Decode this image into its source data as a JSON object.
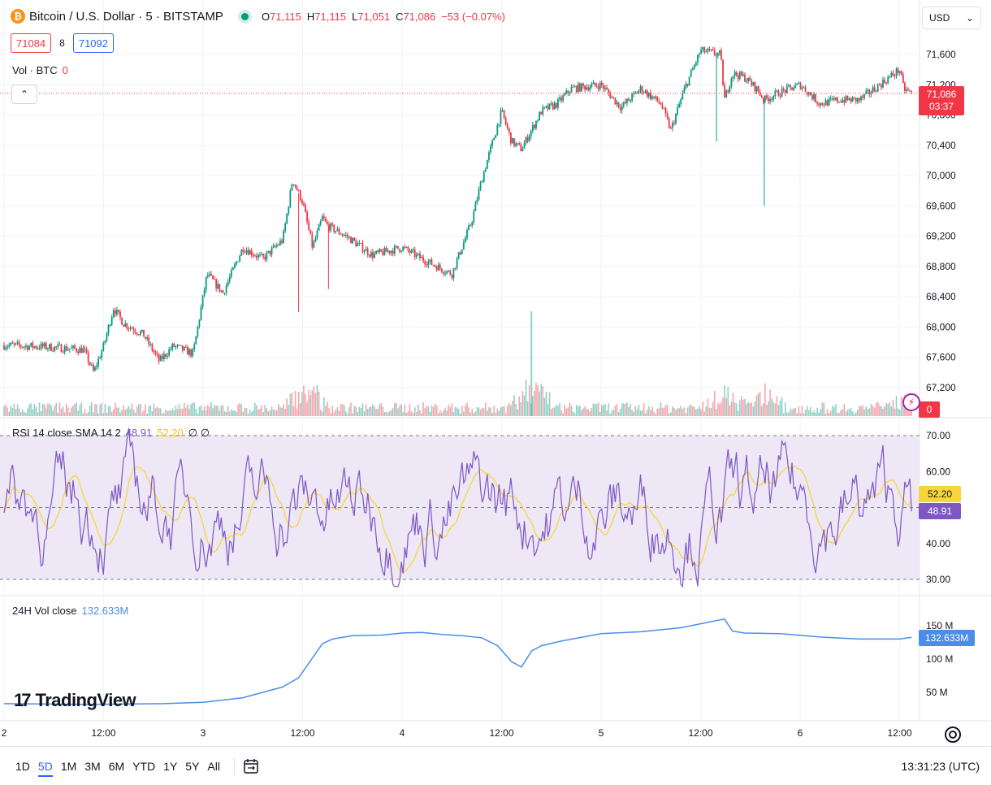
{
  "header": {
    "logo_glyph": "₿",
    "symbol": "Bitcoin / U.S. Dollar · 5 · BITSTAMP",
    "ohlc": {
      "o_label": "O",
      "o": "71,115",
      "h_label": "H",
      "h": "71,115",
      "l_label": "L",
      "l": "71,051",
      "c_label": "C",
      "c": "71,086",
      "change": "−53 (−0.07%)"
    },
    "sell": "71084",
    "spread": "8",
    "buy": "71092",
    "currency": "USD",
    "currency_arrow": "⌄",
    "collapse_glyph": "⌃"
  },
  "volume": {
    "label": "Vol · BTC",
    "value": "0"
  },
  "rsi": {
    "label": "RSI 14 close SMA 14 2",
    "rsi_value": "48.91",
    "sma_value": "52.20",
    "extra": "∅ ∅"
  },
  "vol24": {
    "label": "24H Vol close",
    "value": "132.633M"
  },
  "branding": {
    "mark": "17",
    "name": "TradingView"
  },
  "last_price": {
    "price": "71,086",
    "countdown": "03:37"
  },
  "bolt_glyph": "⚡",
  "ranges": [
    "1D",
    "5D",
    "1M",
    "3M",
    "6M",
    "YTD",
    "1Y",
    "5Y",
    "All"
  ],
  "active_range": "5D",
  "clock": "13:31:23 (UTC)",
  "colors": {
    "up": "#089981",
    "down": "#f23645",
    "rsi": "#7e57c2",
    "sma": "#f7d63a",
    "vol24": "#4c8de8",
    "rsi_band": "#ede7f6"
  },
  "chart_data": [
    {
      "type": "candlestick",
      "title": "Bitcoin / U.S. Dollar · 5 · BITSTAMP",
      "ylim": [
        67000,
        71900
      ],
      "yticks": [
        "71,600",
        "71,200",
        "70,800",
        "70,400",
        "70,000",
        "69,600",
        "69,200",
        "68,800",
        "68,400",
        "68,000",
        "67,600",
        "67,200"
      ],
      "ytick_values": [
        71600,
        71200,
        70800,
        70400,
        70000,
        69600,
        69200,
        68800,
        68400,
        68000,
        67600,
        67200
      ],
      "xticks": [
        "2",
        "12:00",
        "3",
        "12:00",
        "4",
        "12:00",
        "5",
        "12:00",
        "6",
        "12:00"
      ],
      "xtick_positions": [
        0,
        0.5,
        1,
        1.5,
        2,
        2.5,
        3,
        3.5,
        4,
        4.5
      ],
      "x_unit": "days from start of the 2nd (day index)",
      "close_path": {
        "x": [
          0.0,
          0.2,
          0.4,
          0.45,
          0.5,
          0.55,
          0.6,
          0.7,
          0.78,
          0.85,
          0.95,
          1.02,
          1.1,
          1.2,
          1.3,
          1.4,
          1.45,
          1.5,
          1.55,
          1.6,
          1.62,
          1.65,
          1.72,
          1.85,
          2.0,
          2.1,
          2.25,
          2.35,
          2.4,
          2.5,
          2.55,
          2.6,
          2.65,
          2.7,
          2.78,
          2.85,
          3.0,
          3.1,
          3.2,
          3.3,
          3.35,
          3.42,
          3.5,
          3.6,
          3.62,
          3.66,
          3.72,
          3.78,
          3.82,
          3.9,
          4.0,
          4.1,
          4.2,
          4.3,
          4.4,
          4.5,
          4.52,
          4.56
        ],
        "y": [
          67760,
          67740,
          67700,
          67400,
          67750,
          68250,
          68050,
          67900,
          67550,
          67750,
          67650,
          68700,
          68450,
          69050,
          68900,
          69150,
          69950,
          69650,
          69050,
          69450,
          69350,
          69300,
          69200,
          68950,
          69050,
          68900,
          68700,
          69400,
          69950,
          70850,
          70450,
          70350,
          70600,
          70850,
          70950,
          71150,
          71200,
          70900,
          71150,
          70950,
          70600,
          71150,
          71650,
          71600,
          71000,
          71350,
          71300,
          71150,
          71000,
          71100,
          71200,
          70950,
          71000,
          71000,
          71200,
          71400,
          71150,
          71086
        ]
      },
      "last_price": 71086
    },
    {
      "type": "bar",
      "title": "Vol · BTC",
      "value": 0,
      "spike_x": [
        1.52,
        2.65,
        3.62,
        3.82,
        4.5
      ],
      "spike_rel_height": [
        0.9,
        1.0,
        0.75,
        0.5,
        0.45
      ]
    },
    {
      "type": "line",
      "title": "RSI 14 close SMA 14 2",
      "ylim": [
        27,
        73
      ],
      "yticks": [
        "70.00",
        "60.00",
        "50.00",
        "40.00",
        "30.00"
      ],
      "ytick_values": [
        70,
        60,
        50,
        40,
        30
      ],
      "bands": [
        30,
        70
      ],
      "midline": 50,
      "series": [
        {
          "name": "RSI",
          "last": 48.91
        },
        {
          "name": "SMA",
          "last": 52.2
        }
      ]
    },
    {
      "type": "line",
      "title": "24H Vol close",
      "ylim": [
        25,
        180
      ],
      "yticks": [
        "150 M",
        "100 M",
        "50 M"
      ],
      "ytick_values": [
        150,
        100,
        50
      ],
      "series": [
        {
          "name": "24H Vol close",
          "x": [
            0.0,
            0.4,
            0.8,
            1.0,
            1.2,
            1.4,
            1.48,
            1.6,
            1.65,
            1.75,
            1.9,
            2.0,
            2.1,
            2.2,
            2.3,
            2.4,
            2.48,
            2.55,
            2.6,
            2.65,
            2.7,
            2.8,
            3.0,
            3.2,
            3.4,
            3.55,
            3.62,
            3.66,
            3.72,
            3.9,
            4.1,
            4.3,
            4.5,
            4.56
          ],
          "y": [
            33,
            32,
            33,
            35,
            42,
            58,
            72,
            123,
            130,
            135,
            136,
            139,
            140,
            137,
            135,
            132,
            120,
            96,
            88,
            112,
            120,
            127,
            138,
            141,
            147,
            156,
            160,
            142,
            139,
            138,
            133,
            130,
            130,
            132.6
          ]
        }
      ],
      "last": "132.633M"
    }
  ]
}
